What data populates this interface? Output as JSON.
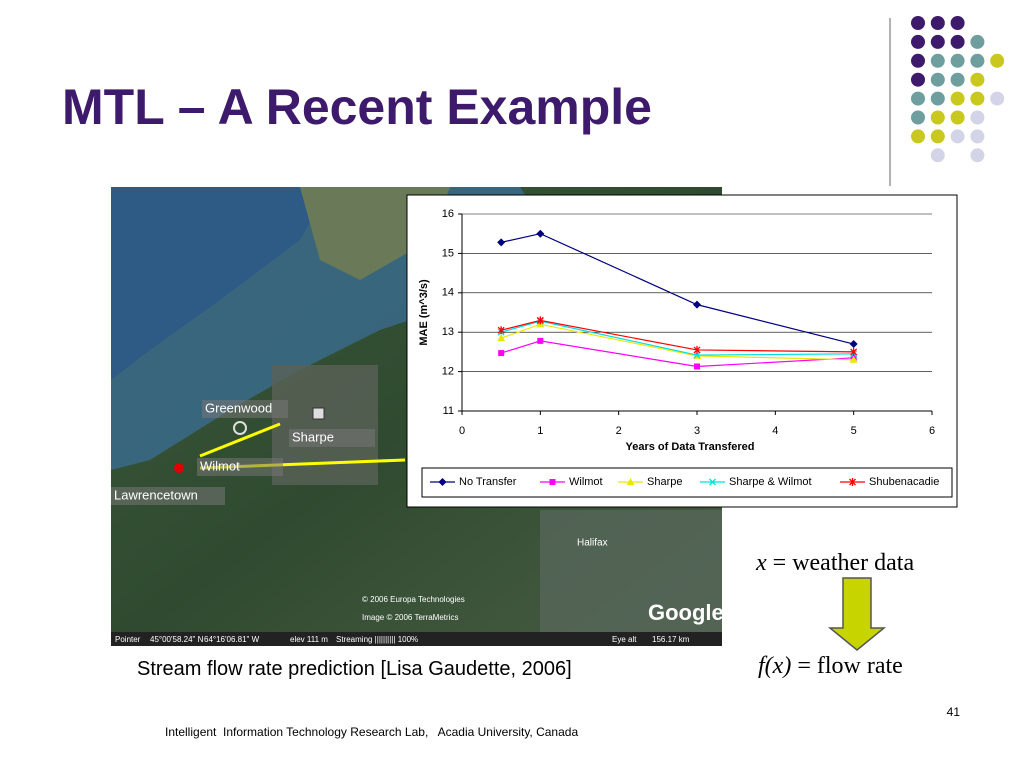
{
  "slide": {
    "title": "MTL – A Recent Example",
    "caption": "Stream flow rate prediction [Lisa Gaudette, 2006]",
    "input_var": "x",
    "input_text": " = weather data",
    "output_var": "f(x)",
    "output_text": " = flow rate",
    "footer": "Intelligent  Information Technology Research Lab,   Acadia University, Canada",
    "page_number": "41"
  },
  "map": {
    "labels": [
      "Greenwood",
      "Sharpe",
      "Wilmot",
      "Lawrencetown",
      "Halifax"
    ],
    "logo": "Google",
    "copyright": [
      "© 2006 Europa Technologies",
      "Image © 2006 TerraMetrics"
    ],
    "status": [
      "Pointer",
      "45°00'58.24\" N",
      "64°16'06.81\" W",
      "elev  111 m",
      "Streaming |||||||||| 100%",
      "Eye alt",
      "156.17 km"
    ]
  },
  "chart_data": {
    "type": "line",
    "xlabel": "Years of Data Transfered",
    "ylabel": "MAE (m^3/s)",
    "x": [
      0.5,
      1,
      3,
      5
    ],
    "xlim": [
      0,
      6
    ],
    "xticks": [
      0,
      1,
      2,
      3,
      4,
      5,
      6
    ],
    "ylim": [
      11,
      16
    ],
    "yticks": [
      11,
      12,
      13,
      14,
      15,
      16
    ],
    "grid": true,
    "legend": "bottom",
    "series": [
      {
        "name": "No Transfer",
        "color": "#000080",
        "marker": "diamond",
        "values": [
          15.28,
          15.5,
          13.7,
          12.7
        ]
      },
      {
        "name": "Wilmot",
        "color": "#ff00ff",
        "marker": "square",
        "values": [
          12.47,
          12.78,
          12.13,
          12.35
        ]
      },
      {
        "name": "Sharpe",
        "color": "#e8e800",
        "marker": "triangle",
        "values": [
          12.85,
          13.2,
          12.4,
          12.3
        ]
      },
      {
        "name": "Sharpe & Wilmot",
        "color": "#00e0e0",
        "marker": "x",
        "values": [
          13.0,
          13.28,
          12.42,
          12.45
        ]
      },
      {
        "name": "Shubenacadie",
        "color": "#ff0000",
        "marker": "star",
        "values": [
          13.05,
          13.3,
          12.55,
          12.5
        ]
      }
    ]
  }
}
